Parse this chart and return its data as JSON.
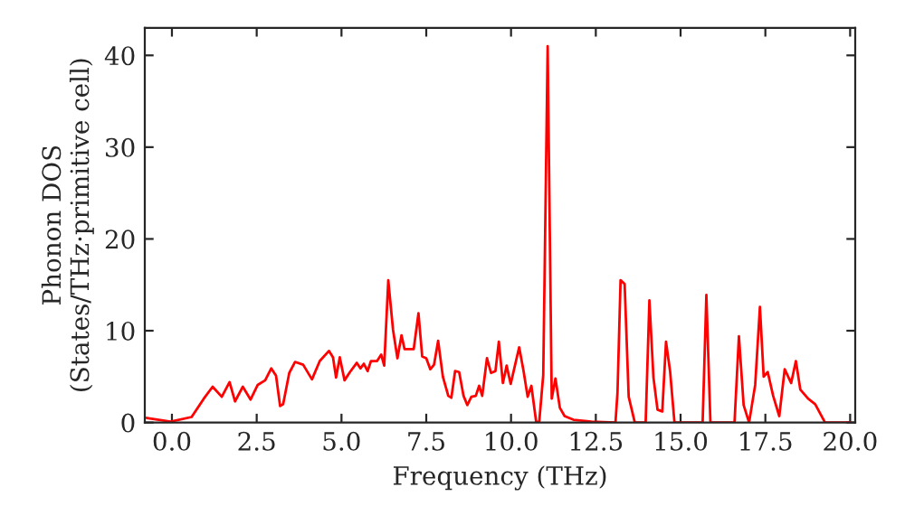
{
  "chart_data": {
    "type": "line",
    "xlabel": "Frequency (THz)",
    "ylabel": "Phonon DOS\n(States/THz·primitive cell)",
    "xlim": [
      -0.8,
      20.15
    ],
    "ylim": [
      0,
      43
    ],
    "xticks": [
      {
        "value": 0,
        "label": "0.0"
      },
      {
        "value": 2.5,
        "label": "2.5"
      },
      {
        "value": 5,
        "label": "5.0"
      },
      {
        "value": 7.5,
        "label": "7.5"
      },
      {
        "value": 10,
        "label": "10.0"
      },
      {
        "value": 12.5,
        "label": "12.5"
      },
      {
        "value": 15,
        "label": "15.0"
      },
      {
        "value": 17.5,
        "label": "17.5"
      },
      {
        "value": 20,
        "label": "20.0"
      }
    ],
    "yticks": [
      0,
      10,
      20,
      30,
      40
    ],
    "grid": false,
    "series": [
      {
        "color": "#ff0000",
        "x": [
          -0.74,
          -0.04,
          0.58,
          0.94,
          1.2,
          1.47,
          1.7,
          1.86,
          2.09,
          2.32,
          2.53,
          2.75,
          2.93,
          3.07,
          3.19,
          3.28,
          3.46,
          3.63,
          3.87,
          4.13,
          4.36,
          4.63,
          4.75,
          4.84,
          4.95,
          5.09,
          5.25,
          5.45,
          5.56,
          5.66,
          5.77,
          5.87,
          6.05,
          6.17,
          6.26,
          6.38,
          6.52,
          6.65,
          6.77,
          6.86,
          7.13,
          7.27,
          7.38,
          7.5,
          7.62,
          7.73,
          7.85,
          7.99,
          8.15,
          8.24,
          8.35,
          8.47,
          8.6,
          8.71,
          8.83,
          8.96,
          9.06,
          9.15,
          9.29,
          9.41,
          9.54,
          9.64,
          9.76,
          9.87,
          9.99,
          10.24,
          10.37,
          10.49,
          10.6,
          10.74,
          10.83,
          10.95,
          11.08,
          11.2,
          11.31,
          11.44,
          11.58,
          11.84,
          12.37,
          13.08,
          13.14,
          13.23,
          13.35,
          13.47,
          13.65,
          13.97,
          14.08,
          14.2,
          14.32,
          14.46,
          14.57,
          14.69,
          14.82,
          15.65,
          15.76,
          15.88,
          16.59,
          16.72,
          16.86,
          17.02,
          17.2,
          17.34,
          17.45,
          17.57,
          17.73,
          17.91,
          18.07,
          18.26,
          18.4,
          18.53,
          18.76,
          18.97,
          19.26,
          20.0
        ],
        "values": [
          0.5,
          0.1,
          0.6,
          2.6,
          3.9,
          2.8,
          4.4,
          2.3,
          3.9,
          2.5,
          4.1,
          4.6,
          5.9,
          5.1,
          1.8,
          2,
          5.4,
          6.6,
          6.3,
          4.7,
          6.7,
          7.8,
          7.1,
          4.9,
          7.1,
          4.6,
          5.5,
          6.5,
          5.9,
          6.4,
          5.6,
          6.7,
          6.7,
          7.4,
          6.2,
          15.5,
          10.1,
          7,
          9.5,
          8,
          8,
          11.9,
          7.2,
          7,
          5.8,
          6.3,
          8.9,
          5,
          2.9,
          2.7,
          5.6,
          5.5,
          2.9,
          1.9,
          2.8,
          2.9,
          4,
          2.9,
          7,
          5.4,
          5.6,
          8.8,
          4.3,
          6.2,
          4.2,
          8.2,
          5.6,
          2.8,
          4,
          0.1,
          0,
          5.2,
          41,
          2.6,
          4.8,
          1.6,
          0.7,
          0.3,
          0.1,
          0,
          3.3,
          15.5,
          15.1,
          2.8,
          0,
          0,
          13.3,
          4.9,
          1.4,
          1.2,
          8.8,
          5.6,
          0,
          0,
          13.9,
          0,
          0,
          9.4,
          1.9,
          0,
          4.1,
          12.6,
          5,
          5.5,
          2.9,
          0.7,
          5.8,
          4.3,
          6.7,
          3.6,
          2.6,
          2,
          0,
          0
        ]
      }
    ]
  }
}
